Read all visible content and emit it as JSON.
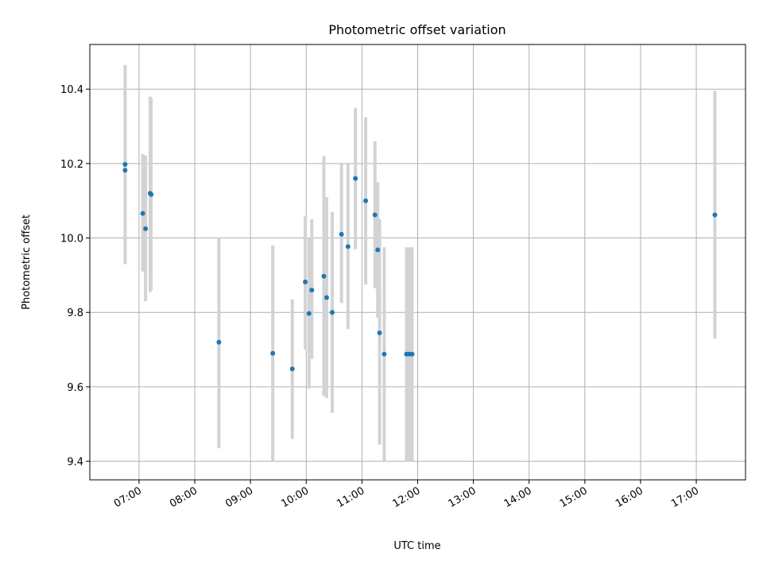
{
  "chart_data": {
    "type": "scatter",
    "title": "Photometric offset variation",
    "xlabel": "UTC time",
    "ylabel": "Photometric offset",
    "x_unit": "hours UTC",
    "xlim": [
      "06:07",
      "17:53"
    ],
    "ylim": [
      9.35,
      10.52
    ],
    "x_ticks": [
      "07:00",
      "08:00",
      "09:00",
      "10:00",
      "11:00",
      "12:00",
      "13:00",
      "14:00",
      "15:00",
      "16:00",
      "17:00"
    ],
    "y_ticks": [
      "9.4",
      "9.6",
      "9.8",
      "10.0",
      "10.2",
      "10.4"
    ],
    "grid": true,
    "marker_color": "#1f77b4",
    "errorbar_color": "#d3d3d3",
    "points": [
      {
        "time": "06:45",
        "y": 10.198,
        "low": 9.93,
        "high": 10.465
      },
      {
        "time": "06:45",
        "y": 10.182,
        "low": 9.93,
        "high": 10.435
      },
      {
        "time": "07:04",
        "y": 10.066,
        "low": 9.91,
        "high": 10.225
      },
      {
        "time": "07:07",
        "y": 10.025,
        "low": 9.83,
        "high": 10.222
      },
      {
        "time": "07:12",
        "y": 10.12,
        "low": 9.855,
        "high": 10.38
      },
      {
        "time": "07:13",
        "y": 10.117,
        "low": 9.86,
        "high": 10.375
      },
      {
        "time": "08:26",
        "y": 9.72,
        "low": 9.435,
        "high": 10.0
      },
      {
        "time": "09:24",
        "y": 9.69,
        "low": 9.4,
        "high": 9.98
      },
      {
        "time": "09:45",
        "y": 9.648,
        "low": 9.46,
        "high": 9.835
      },
      {
        "time": "09:59",
        "y": 9.882,
        "low": 9.7,
        "high": 10.06
      },
      {
        "time": "10:03",
        "y": 9.797,
        "low": 9.595,
        "high": 10.0
      },
      {
        "time": "10:06",
        "y": 9.86,
        "low": 9.675,
        "high": 10.05
      },
      {
        "time": "10:19",
        "y": 9.897,
        "low": 9.575,
        "high": 10.22
      },
      {
        "time": "10:22",
        "y": 9.84,
        "low": 9.57,
        "high": 10.11
      },
      {
        "time": "10:28",
        "y": 9.8,
        "low": 9.53,
        "high": 10.07
      },
      {
        "time": "10:38",
        "y": 10.01,
        "low": 9.825,
        "high": 10.2
      },
      {
        "time": "10:45",
        "y": 9.977,
        "low": 9.755,
        "high": 10.2
      },
      {
        "time": "10:53",
        "y": 10.16,
        "low": 9.97,
        "high": 10.35
      },
      {
        "time": "11:04",
        "y": 10.1,
        "low": 9.875,
        "high": 10.325
      },
      {
        "time": "11:14",
        "y": 10.062,
        "low": 9.865,
        "high": 10.26
      },
      {
        "time": "11:17",
        "y": 9.968,
        "low": 9.785,
        "high": 10.15
      },
      {
        "time": "11:19",
        "y": 9.745,
        "low": 9.445,
        "high": 10.05
      },
      {
        "time": "11:24",
        "y": 9.688,
        "low": 9.4,
        "high": 9.975
      },
      {
        "time": "11:48",
        "y": 9.688,
        "low": 9.4,
        "high": 9.975
      },
      {
        "time": "11:51",
        "y": 9.688,
        "low": 9.4,
        "high": 9.975
      },
      {
        "time": "11:54",
        "y": 9.688,
        "low": 9.4,
        "high": 9.975
      },
      {
        "time": "17:20",
        "y": 10.062,
        "low": 9.73,
        "high": 10.395
      }
    ]
  }
}
